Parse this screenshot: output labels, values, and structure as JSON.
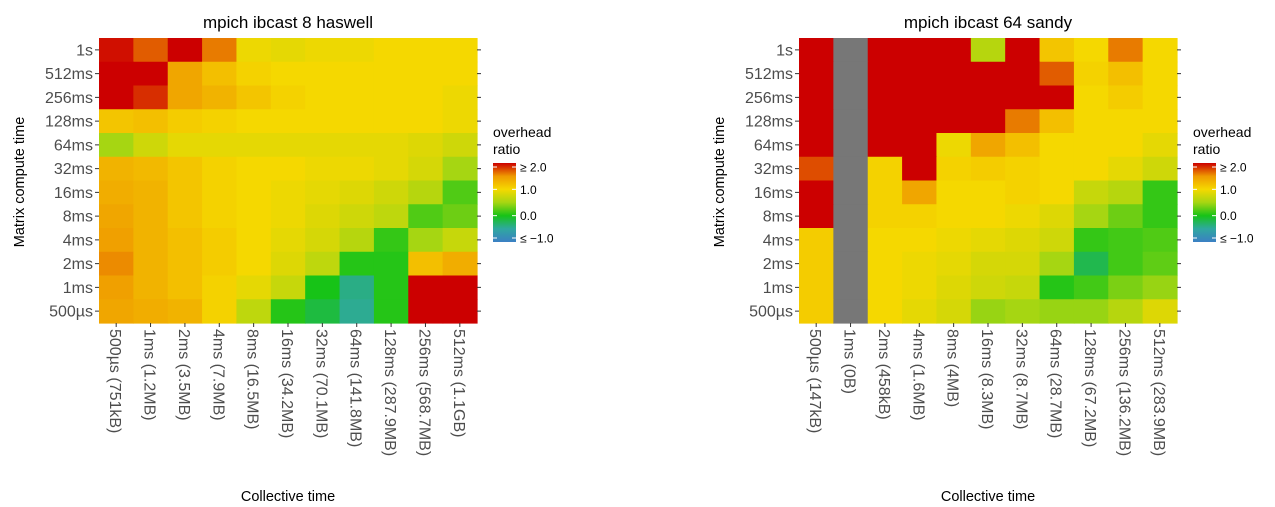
{
  "palette": {
    "stops": [
      {
        "v": -1.0,
        "color": "#3b7fc4"
      },
      {
        "v": -0.5,
        "color": "#2fa8a0"
      },
      {
        "v": 0.0,
        "color": "#17c317"
      },
      {
        "v": 0.5,
        "color": "#a6d612"
      },
      {
        "v": 1.0,
        "color": "#f5d800"
      },
      {
        "v": 1.5,
        "color": "#ef9a00"
      },
      {
        "v": 2.0,
        "color": "#cc0000"
      }
    ],
    "na_color": "#777777",
    "axis_tick_color": "#333333",
    "text_color": "#4d4d4d"
  },
  "chart_data": [
    {
      "type": "heatmap",
      "title": "mpich ibcast 8 haswell",
      "xlabel": "Collective time",
      "ylabel": "Matrix compute time",
      "x": [
        "500µs (751kB)",
        "1ms (1.2MB)",
        "2ms (3.5MB)",
        "4ms (7.9MB)",
        "8ms (16.5MB)",
        "16ms (34.2MB)",
        "32ms (70.1MB)",
        "64ms (141.8MB)",
        "128ms (287.9MB)",
        "256ms (568.7MB)",
        "512ms (1.1GB)"
      ],
      "y": [
        "1s",
        "512ms",
        "256ms",
        "128ms",
        "64ms",
        "32ms",
        "16ms",
        "8ms",
        "4ms",
        "2ms",
        "1ms",
        "500µs"
      ],
      "values": [
        [
          1.95,
          1.7,
          2.0,
          1.6,
          0.95,
          0.9,
          0.95,
          0.95,
          1.0,
          1.0,
          1.0
        ],
        [
          2.0,
          2.0,
          1.4,
          1.2,
          1.05,
          1.0,
          1.0,
          1.0,
          1.0,
          1.0,
          1.0
        ],
        [
          2.0,
          1.85,
          1.4,
          1.3,
          1.15,
          1.05,
          1.0,
          1.0,
          1.0,
          1.0,
          0.95
        ],
        [
          1.15,
          1.2,
          1.1,
          1.05,
          1.0,
          1.0,
          1.0,
          1.0,
          1.0,
          1.0,
          0.95
        ],
        [
          0.5,
          0.75,
          0.9,
          0.9,
          0.9,
          0.9,
          0.9,
          0.9,
          0.9,
          0.85,
          0.75
        ],
        [
          1.3,
          1.25,
          1.15,
          1.05,
          1.0,
          1.0,
          0.95,
          0.95,
          0.9,
          0.8,
          0.5
        ],
        [
          1.35,
          1.3,
          1.15,
          1.05,
          1.0,
          0.95,
          0.9,
          0.85,
          0.75,
          0.6,
          0.2
        ],
        [
          1.4,
          1.3,
          1.15,
          1.05,
          1.0,
          0.95,
          0.85,
          0.75,
          0.65,
          0.2,
          0.3
        ],
        [
          1.45,
          1.3,
          1.2,
          1.1,
          1.0,
          0.9,
          0.8,
          0.6,
          0.1,
          0.5,
          0.7
        ],
        [
          1.55,
          1.3,
          1.2,
          1.1,
          1.0,
          0.85,
          0.65,
          0.05,
          0.05,
          1.2,
          1.35
        ],
        [
          1.45,
          1.3,
          1.2,
          1.05,
          0.9,
          0.7,
          0.0,
          -0.4,
          0.05,
          2.0,
          2.0
        ],
        [
          1.4,
          1.35,
          1.3,
          1.05,
          0.65,
          0.05,
          -0.15,
          -0.45,
          0.05,
          2.0,
          2.0
        ]
      ]
    },
    {
      "type": "heatmap",
      "title": "mpich ibcast 64 sandy",
      "xlabel": "Collective time",
      "ylabel": "Matrix compute time",
      "x": [
        "500µs (147kB)",
        "1ms (0B)",
        "2ms (458kB)",
        "4ms (1.6MB)",
        "8ms (4MB)",
        "16ms (8.3MB)",
        "32ms (8.7MB)",
        "64ms (28.7MB)",
        "128ms (67.2MB)",
        "256ms (136.2MB)",
        "512ms (283.9MB)"
      ],
      "y": [
        "1s",
        "512ms",
        "256ms",
        "128ms",
        "64ms",
        "32ms",
        "16ms",
        "8ms",
        "4ms",
        "2ms",
        "1ms",
        "500µs"
      ],
      "values": [
        [
          2.0,
          null,
          2.0,
          2.0,
          2.0,
          0.6,
          2.0,
          1.15,
          1.0,
          1.6,
          1.0
        ],
        [
          2.0,
          null,
          2.0,
          2.0,
          2.0,
          2.0,
          2.0,
          1.7,
          1.05,
          1.2,
          1.0
        ],
        [
          2.0,
          null,
          2.0,
          2.0,
          2.0,
          2.0,
          2.0,
          2.0,
          1.0,
          1.1,
          1.0
        ],
        [
          2.0,
          null,
          2.0,
          2.0,
          2.0,
          2.0,
          1.6,
          1.2,
          1.0,
          1.0,
          1.0
        ],
        [
          2.0,
          null,
          2.0,
          2.0,
          0.95,
          1.4,
          1.2,
          1.0,
          1.0,
          1.0,
          0.9
        ],
        [
          1.75,
          null,
          1.05,
          2.0,
          1.05,
          1.1,
          1.05,
          1.0,
          1.0,
          0.9,
          0.75
        ],
        [
          2.0,
          null,
          1.05,
          1.4,
          1.0,
          1.0,
          1.05,
          1.0,
          0.7,
          0.6,
          0.1
        ],
        [
          2.0,
          null,
          1.05,
          1.05,
          1.0,
          1.0,
          0.95,
          0.85,
          0.5,
          0.3,
          0.1
        ],
        [
          1.1,
          null,
          1.0,
          1.0,
          0.95,
          0.9,
          0.85,
          0.75,
          0.1,
          0.15,
          0.2
        ],
        [
          1.1,
          null,
          1.0,
          0.95,
          0.9,
          0.8,
          0.8,
          0.5,
          -0.2,
          0.15,
          0.25
        ],
        [
          1.1,
          null,
          1.0,
          0.95,
          0.85,
          0.75,
          0.7,
          0.05,
          0.15,
          0.35,
          0.45
        ],
        [
          1.1,
          null,
          1.0,
          0.9,
          0.8,
          0.45,
          0.5,
          0.45,
          0.45,
          0.6,
          0.85
        ]
      ]
    }
  ],
  "legend": {
    "title_line1": "overhead",
    "title_line2": "ratio",
    "labels": [
      "≥ 2.0",
      "1.0",
      "0.0",
      "≤ −1.0"
    ],
    "label_values": [
      2.0,
      1.0,
      0.0,
      -1.0
    ],
    "range": [
      -1.0,
      2.0
    ]
  }
}
